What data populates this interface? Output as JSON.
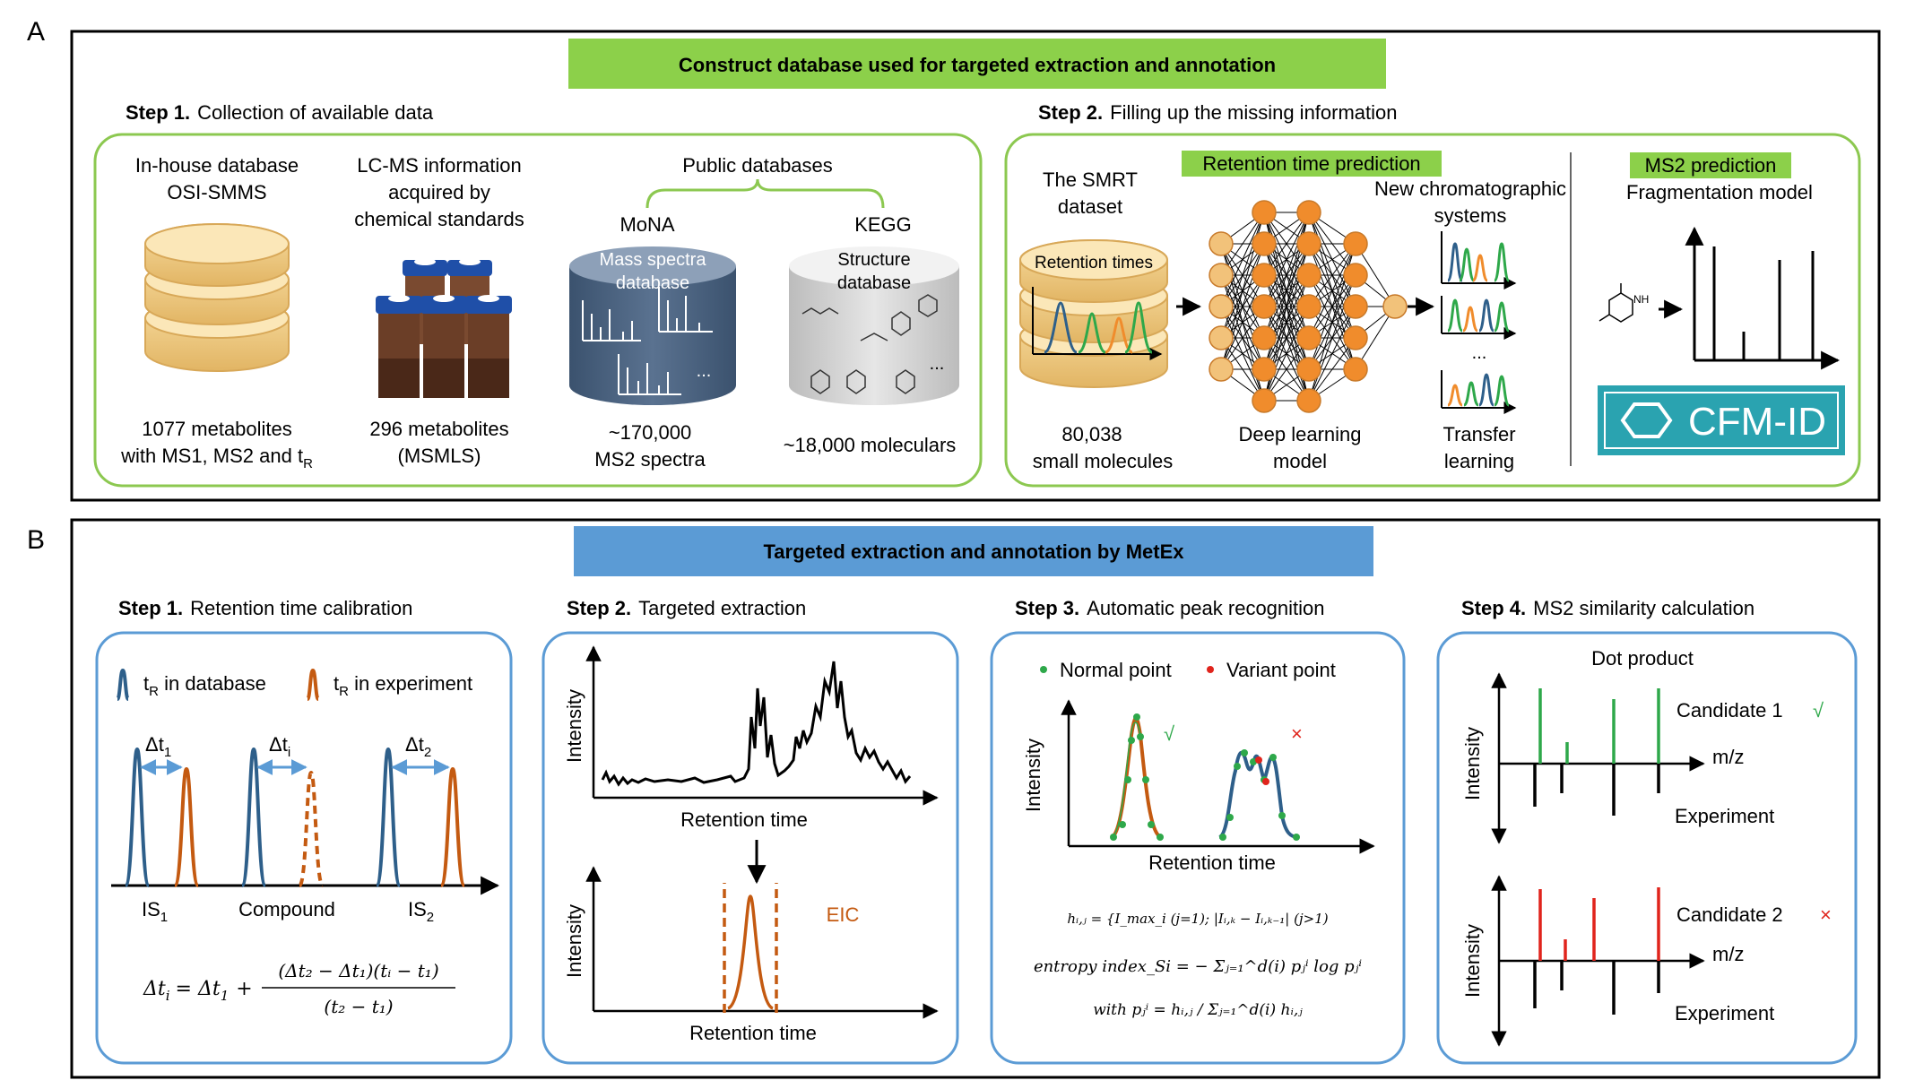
{
  "panel_a": {
    "letter": "A",
    "banner": "Construct database used for targeted extraction and annotation",
    "step1": {
      "num": "Step 1.",
      "title": "Collection of available data",
      "inhouse": {
        "line1": "In-house database",
        "line2": "OSI-SMMS",
        "count1": "1077 metabolites",
        "count2": "with MS1, MS2 and t",
        "count2_sub": "R"
      },
      "lcms": {
        "line1": "LC-MS information",
        "line2": "acquired by",
        "line3": "chemical standards",
        "count1": "296 metabolites",
        "count2": "(MSMLS)"
      },
      "public": {
        "title": "Public databases",
        "mona": {
          "name": "MoNA",
          "label1": "Mass spectra",
          "label2": "database",
          "count1": "~170,000",
          "count2": "MS2 spectra",
          "ellipsis": "..."
        },
        "kegg": {
          "name": "KEGG",
          "label1": "Structure",
          "label2": "database",
          "count1": "~18,000 moleculars",
          "ellipsis": "..."
        }
      }
    },
    "step2": {
      "num": "Step 2.",
      "title": "Filling up the missing information",
      "rt_tag": "Retention time prediction",
      "smrt": {
        "line1": "The SMRT",
        "line2": "dataset",
        "rt_label": "Retention times",
        "count1": "80,038",
        "count2": "small molecules"
      },
      "dl": {
        "line1": "Deep learning",
        "line2": "model"
      },
      "new_sys": {
        "line1": "New chromatographic",
        "line2": "systems",
        "ellipsis": "...",
        "tl1": "Transfer",
        "tl2": "learning"
      },
      "ms2_tag": "MS2 prediction",
      "frag": "Fragmentation model",
      "nh": "NH",
      "cfm": "CFM-ID"
    }
  },
  "panel_b": {
    "letter": "B",
    "banner": "Targeted extraction and annotation by MetEx",
    "step1": {
      "num": "Step 1.",
      "title": "Retention time calibration",
      "legend_db": "t",
      "legend_db_sub": "R",
      "legend_db_rest": " in database",
      "legend_exp": "t",
      "legend_exp_sub": "R",
      "legend_exp_rest": " in experiment",
      "dt1": "Δt",
      "dt1_sub": "1",
      "dti": "Δt",
      "dti_sub": "i",
      "dt2": "Δt",
      "dt2_sub": "2",
      "is1": "IS",
      "is1_sub": "1",
      "compound": "Compound",
      "is2": "IS",
      "is2_sub": "2",
      "formula_lhs": "Δt",
      "formula_lhs_sub": "i",
      "formula_mid": "= Δt",
      "formula_mid_sub": "1",
      "formula_plus": "+",
      "formula_num": "(Δt₂ − Δt₁)(tᵢ − t₁)",
      "formula_den": "(t₂ − t₁)"
    },
    "step2": {
      "num": "Step 2.",
      "title": "Targeted extraction",
      "ylabel": "Intensity",
      "xlabel": "Retention time",
      "eic": "EIC"
    },
    "step3": {
      "num": "Step 3.",
      "title": "Automatic peak recognition",
      "normal": "Normal point",
      "variant": "Variant point",
      "check": "√",
      "cross": "×",
      "ylabel": "Intensity",
      "xlabel": "Retention time",
      "eq1": "hᵢ,ⱼ = {I_max_i (j=1); |Iᵢ,ₖ − Iᵢ,ₖ₋₁| (j>1)",
      "eq2": "entropy index_Si = − Σⱼ₌₁^d(i) pⱼⁱ log pⱼⁱ",
      "eq3": "with pⱼⁱ = hᵢ,ⱼ / Σⱼ₌₁^d(i) hᵢ,ⱼ"
    },
    "step4": {
      "num": "Step 4.",
      "title": "MS2 similarity calculation",
      "dot": "Dot product",
      "cand1": "Candidate 1",
      "check": "√",
      "cand2": "Candidate 2",
      "cross": "×",
      "mz": "m/z",
      "ylabel": "Intensity",
      "experiment": "Experiment"
    }
  },
  "colors": {
    "green_banner": "#8cd04a",
    "blue_banner": "#5b9bd5",
    "green_box": "#8cc850",
    "blue_box": "#5b9bd5",
    "db_blue": "#2e5f8a",
    "exp_orange": "#c45a11",
    "node_orange": "#f08c2c",
    "node_tan": "#f2c27a",
    "cfm_teal": "#2aa3b0",
    "peak_green": "#2ea84a",
    "variant_red": "#e0241c"
  }
}
